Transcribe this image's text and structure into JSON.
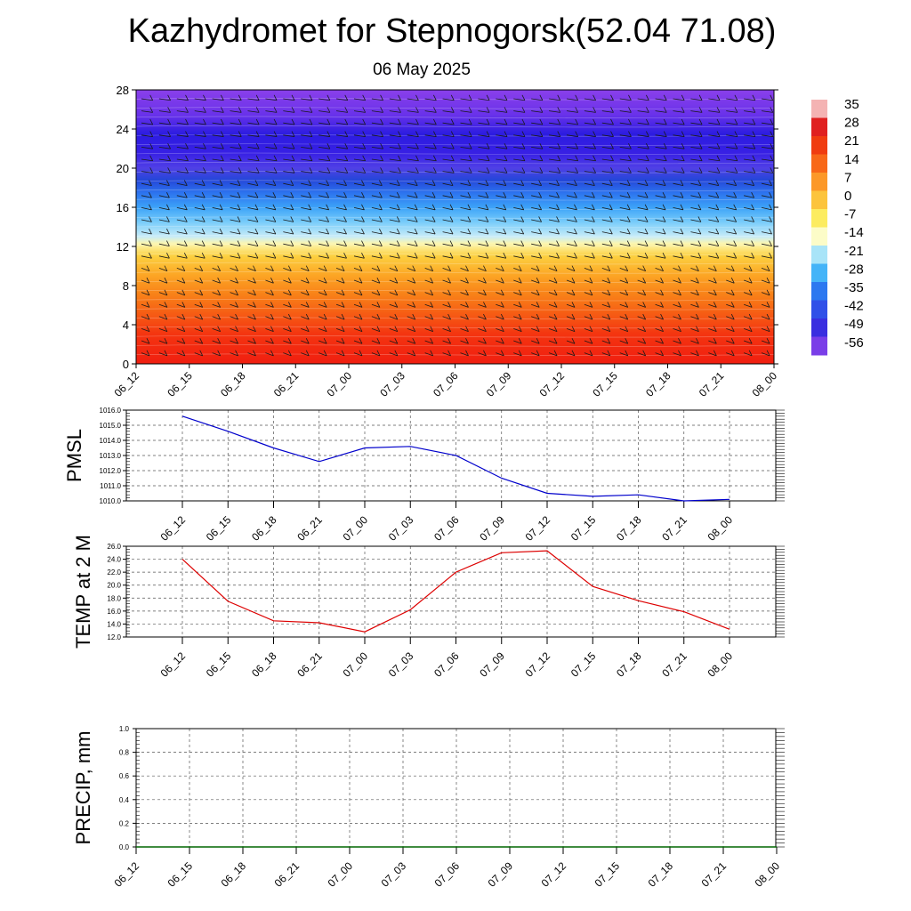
{
  "header": {
    "title": "Kazhydromet for Stepnogorsk(52.04 71.08)",
    "subtitle": "06 May 2025"
  },
  "chart_data": [
    {
      "type": "heatmap",
      "name": "vertical-cross-section",
      "x_ticks": [
        "06_12",
        "06_15",
        "06_18",
        "06_21",
        "07_00",
        "07_03",
        "07_06",
        "07_09",
        "07_12",
        "07_15",
        "07_18",
        "07_21",
        "08_00"
      ],
      "y_ticks": [
        "0",
        "4",
        "8",
        "12",
        "16",
        "20",
        "24",
        "28"
      ],
      "ylim": [
        0,
        28
      ],
      "colorbar": {
        "labels": [
          "35",
          "28",
          "21",
          "14",
          "7",
          "0",
          "-7",
          "-14",
          "-21",
          "-28",
          "-35",
          "-42",
          "-49",
          "-56"
        ],
        "colors": [
          "#f4b3b3",
          "#e02020",
          "#f03c10",
          "#f86818",
          "#fc9828",
          "#fcc43c",
          "#fcec60",
          "#fcfcc8",
          "#a8e4f8",
          "#44b4f8",
          "#2c78f0",
          "#3050e8",
          "#3a2ee0",
          "#7a3ee8"
        ]
      },
      "layers": [
        {
          "z": 0,
          "color": "#f01e10"
        },
        {
          "z": 3,
          "color": "#f43410"
        },
        {
          "z": 5,
          "color": "#f65a14"
        },
        {
          "z": 7,
          "color": "#f88018"
        },
        {
          "z": 9,
          "color": "#fca424"
        },
        {
          "z": 11,
          "color": "#fcd040"
        },
        {
          "z": 12.3,
          "color": "#fcf6b0"
        },
        {
          "z": 13,
          "color": "#c8ecf8"
        },
        {
          "z": 14.5,
          "color": "#78ccfa"
        },
        {
          "z": 16,
          "color": "#3ca2f8"
        },
        {
          "z": 17.5,
          "color": "#2c72ee"
        },
        {
          "z": 18.8,
          "color": "#2446d8"
        },
        {
          "z": 20,
          "color": "#5040e6"
        },
        {
          "z": 21.5,
          "color": "#3820e4"
        },
        {
          "z": 23.5,
          "color": "#2c1ce0"
        },
        {
          "z": 25.5,
          "color": "#6a32ea"
        },
        {
          "z": 28,
          "color": "#8a40ea"
        }
      ]
    },
    {
      "type": "line",
      "ylabel": "PMSL",
      "x": [
        "06_12",
        "06_15",
        "06_18",
        "06_21",
        "07_00",
        "07_03",
        "07_06",
        "07_09",
        "07_12",
        "07_15",
        "07_18",
        "07_21",
        "08_00"
      ],
      "values": [
        1015.6,
        1014.6,
        1013.5,
        1012.6,
        1013.5,
        1013.6,
        1013.0,
        1011.5,
        1010.5,
        1010.3,
        1010.4,
        1010.0,
        1010.1
      ],
      "ylim": [
        1010,
        1016
      ],
      "y_ticks": [
        "1010.0",
        "1011.0",
        "1012.0",
        "1013.0",
        "1014.0",
        "1015.0",
        "1016.0"
      ],
      "color": "#0000cc"
    },
    {
      "type": "line",
      "ylabel": "TEMP at 2 M",
      "x": [
        "06_12",
        "06_15",
        "06_18",
        "06_21",
        "07_00",
        "07_03",
        "07_06",
        "07_09",
        "07_12",
        "07_15",
        "07_18",
        "07_21",
        "08_00"
      ],
      "values": [
        24.0,
        17.5,
        14.5,
        14.2,
        12.8,
        16.2,
        22.0,
        25.0,
        25.3,
        19.8,
        17.6,
        15.9,
        13.2
      ],
      "ylim": [
        12,
        26
      ],
      "y_ticks": [
        "12.0",
        "14.0",
        "16.0",
        "18.0",
        "20.0",
        "22.0",
        "24.0",
        "26.0"
      ],
      "color": "#dd0000"
    },
    {
      "type": "line",
      "ylabel": "PRECIP, mm",
      "x": [
        "06_12",
        "06_15",
        "06_18",
        "06_21",
        "07_00",
        "07_03",
        "07_06",
        "07_09",
        "07_12",
        "07_15",
        "07_18",
        "07_21",
        "08_00"
      ],
      "values": [
        0,
        0,
        0,
        0,
        0,
        0,
        0,
        0,
        0,
        0,
        0,
        0,
        0
      ],
      "ylim": [
        0,
        1
      ],
      "y_ticks": [
        "0.0",
        "0.2",
        "0.4",
        "0.6",
        "0.8",
        "1.0"
      ],
      "color": "#006600"
    }
  ]
}
